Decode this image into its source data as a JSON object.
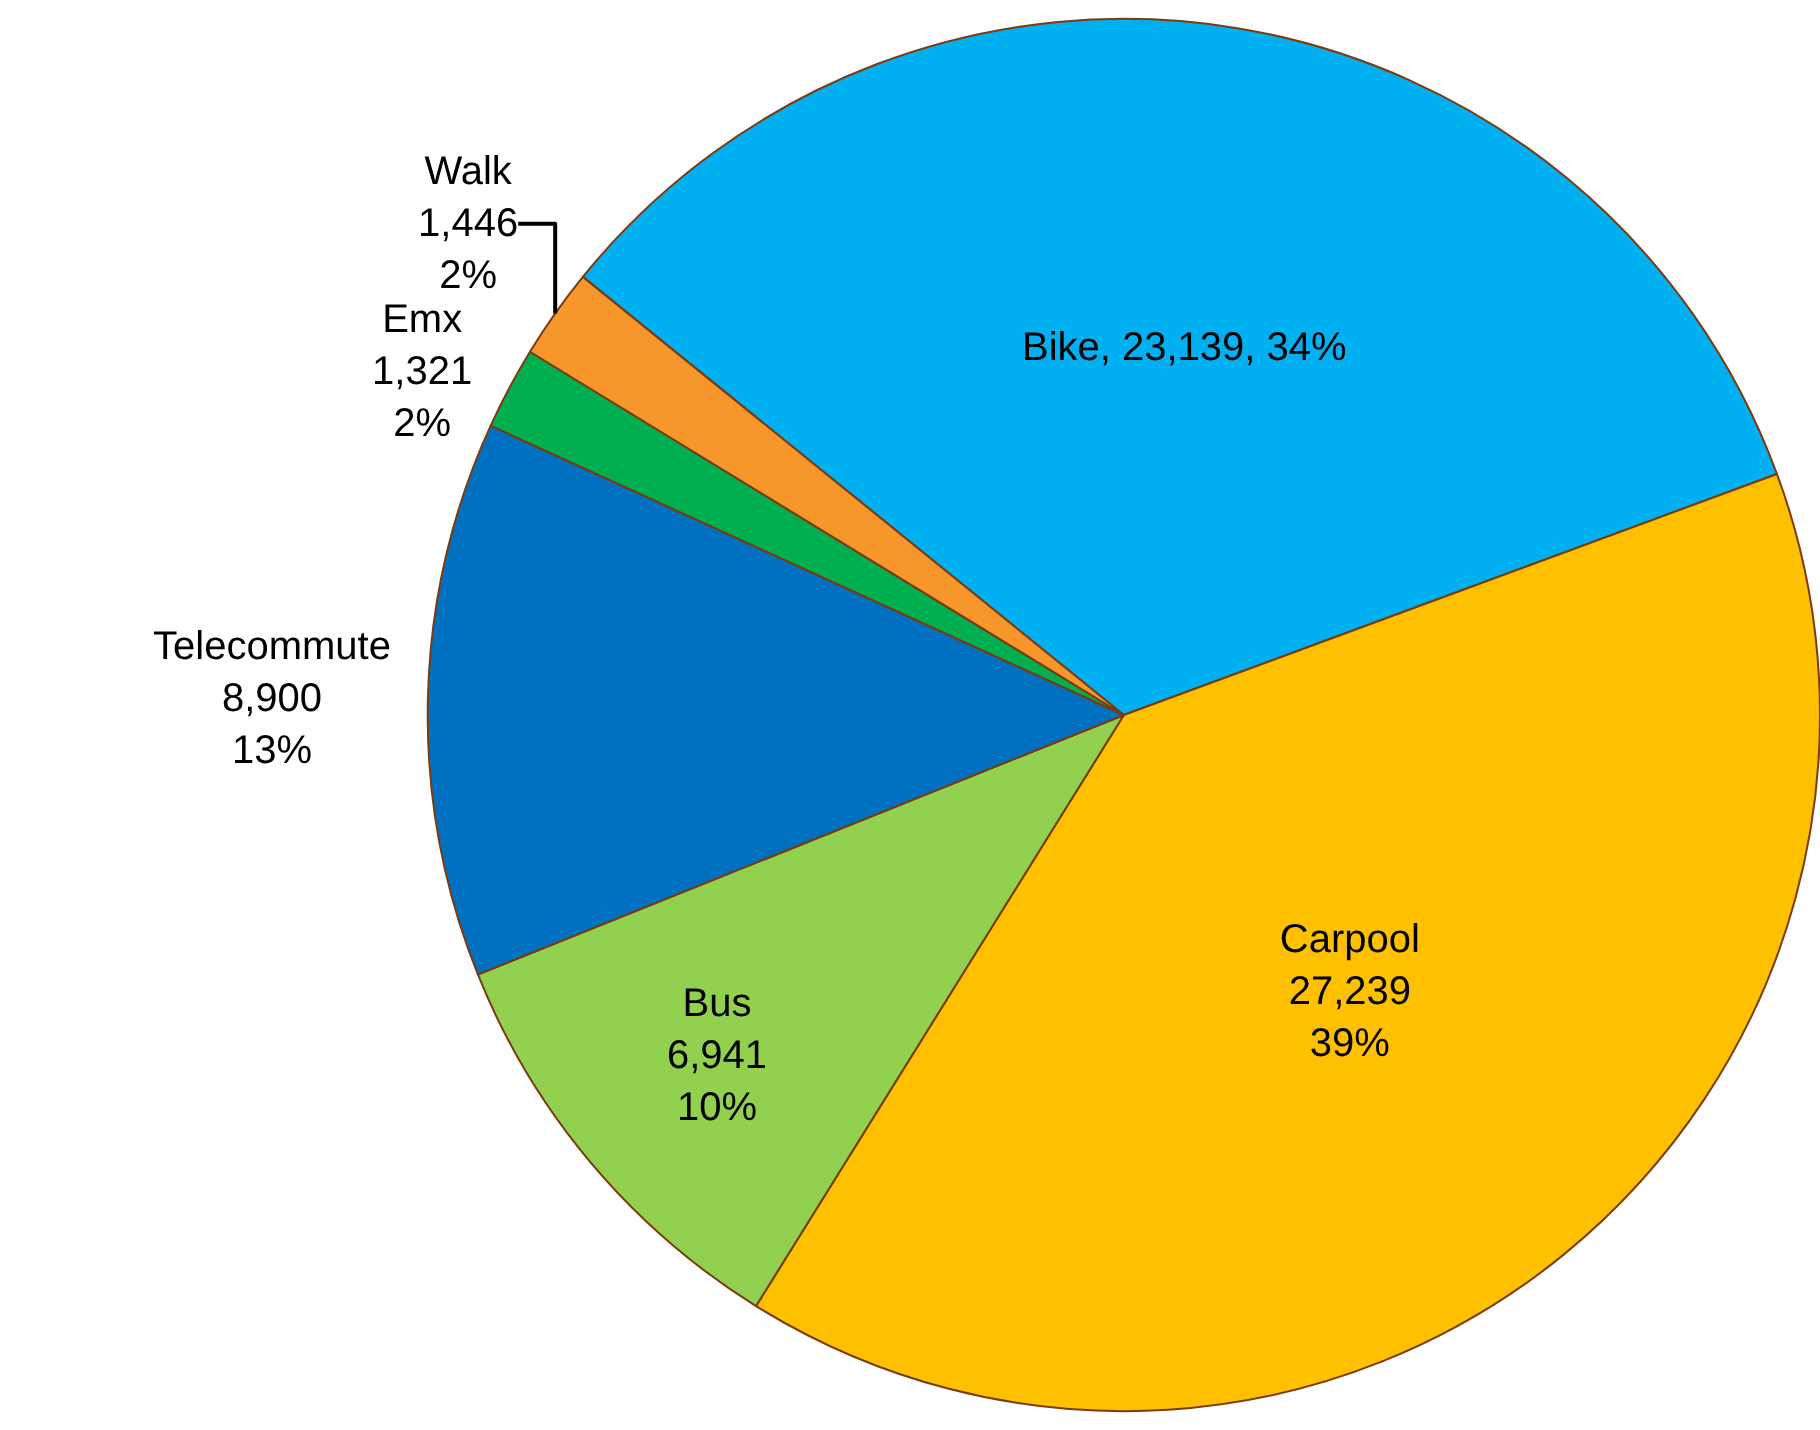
{
  "chart_data": {
    "type": "pie",
    "categories": [
      "Bike",
      "Carpool",
      "Bus",
      "Telecommute",
      "Emx",
      "Walk"
    ],
    "values": [
      23139,
      27239,
      6941,
      8900,
      1321,
      1446
    ],
    "value_labels": [
      "23,139, 34%",
      "27,239\n39%",
      "6,941\n10%",
      "8,900\n13%",
      "1,321\n2%",
      "1,446\n2%"
    ],
    "colors": [
      "#00b0f0",
      "#ffc000",
      "#92d050",
      "#0070c0",
      "#00b050",
      "#f7962a"
    ],
    "legend": false
  }
}
